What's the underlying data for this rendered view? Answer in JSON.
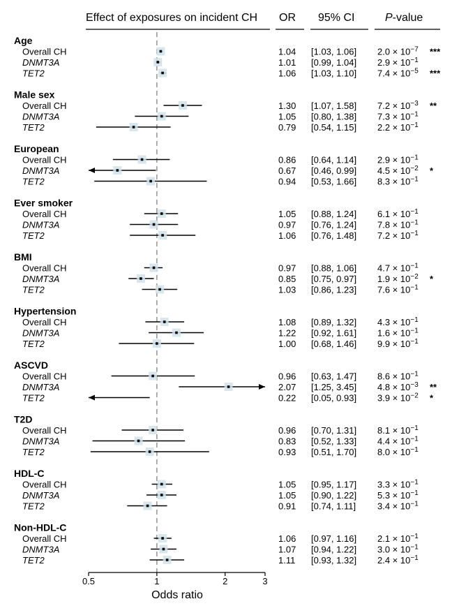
{
  "chart_data": {
    "type": "forest",
    "header": {
      "effect": "Effect of exposures on incident CH",
      "or": "OR",
      "ci": "95% CI",
      "p": "P-value"
    },
    "xlabel": "Odds ratio",
    "xscale": "log",
    "xlim": [
      0.5,
      3
    ],
    "xticks": [
      {
        "value": 0.5,
        "label": "0.5"
      },
      {
        "value": 1,
        "label": "1"
      },
      {
        "value": 2,
        "label": "2"
      },
      {
        "value": 3,
        "label": "3"
      }
    ],
    "reference_line": 1,
    "groups": [
      {
        "name": "Age",
        "rows": [
          {
            "label": "Overall CH",
            "italic": false,
            "or": 1.04,
            "lo": 1.03,
            "hi": 1.06,
            "or_text": "1.04",
            "ci_text": "[1.03, 1.06]",
            "p_mant": "2.0",
            "p_exp": "−7",
            "stars": "***"
          },
          {
            "label": "DNMT3A",
            "italic": true,
            "or": 1.01,
            "lo": 0.99,
            "hi": 1.04,
            "or_text": "1.01",
            "ci_text": "[0.99, 1.04]",
            "p_mant": "2.9",
            "p_exp": "−1",
            "stars": ""
          },
          {
            "label": "TET2",
            "italic": true,
            "or": 1.06,
            "lo": 1.03,
            "hi": 1.1,
            "or_text": "1.06",
            "ci_text": "[1.03, 1.10]",
            "p_mant": "7.4",
            "p_exp": "−5",
            "stars": "***"
          }
        ]
      },
      {
        "name": "Male sex",
        "rows": [
          {
            "label": "Overall CH",
            "italic": false,
            "or": 1.3,
            "lo": 1.07,
            "hi": 1.58,
            "or_text": "1.30",
            "ci_text": "[1.07, 1.58]",
            "p_mant": "7.2",
            "p_exp": "−3",
            "stars": "**"
          },
          {
            "label": "DNMT3A",
            "italic": true,
            "or": 1.05,
            "lo": 0.8,
            "hi": 1.38,
            "or_text": "1.05",
            "ci_text": "[0.80, 1.38]",
            "p_mant": "7.3",
            "p_exp": "−1",
            "stars": ""
          },
          {
            "label": "TET2",
            "italic": true,
            "or": 0.79,
            "lo": 0.54,
            "hi": 1.15,
            "or_text": "0.79",
            "ci_text": "[0.54, 1.15]",
            "p_mant": "2.2",
            "p_exp": "−1",
            "stars": ""
          }
        ]
      },
      {
        "name": "European",
        "rows": [
          {
            "label": "Overall CH",
            "italic": false,
            "or": 0.86,
            "lo": 0.64,
            "hi": 1.14,
            "or_text": "0.86",
            "ci_text": "[0.64, 1.14]",
            "p_mant": "2.9",
            "p_exp": "−1",
            "stars": ""
          },
          {
            "label": "DNMT3A",
            "italic": true,
            "or": 0.67,
            "lo": 0.46,
            "hi": 0.99,
            "or_text": "0.67",
            "ci_text": "[0.46, 0.99]",
            "p_mant": "4.5",
            "p_exp": "−2",
            "stars": "*"
          },
          {
            "label": "TET2",
            "italic": true,
            "or": 0.94,
            "lo": 0.53,
            "hi": 1.66,
            "or_text": "0.94",
            "ci_text": "[0.53, 1.66]",
            "p_mant": "8.3",
            "p_exp": "−1",
            "stars": ""
          }
        ]
      },
      {
        "name": "Ever smoker",
        "rows": [
          {
            "label": "Overall CH",
            "italic": false,
            "or": 1.05,
            "lo": 0.88,
            "hi": 1.24,
            "or_text": "1.05",
            "ci_text": "[0.88, 1.24]",
            "p_mant": "6.1",
            "p_exp": "−1",
            "stars": ""
          },
          {
            "label": "DNMT3A",
            "italic": true,
            "or": 0.97,
            "lo": 0.76,
            "hi": 1.24,
            "or_text": "0.97",
            "ci_text": "[0.76, 1.24]",
            "p_mant": "7.8",
            "p_exp": "−1",
            "stars": ""
          },
          {
            "label": "TET2",
            "italic": true,
            "or": 1.06,
            "lo": 0.76,
            "hi": 1.48,
            "or_text": "1.06",
            "ci_text": "[0.76, 1.48]",
            "p_mant": "7.2",
            "p_exp": "−1",
            "stars": ""
          }
        ]
      },
      {
        "name": "BMI",
        "rows": [
          {
            "label": "Overall CH",
            "italic": false,
            "or": 0.97,
            "lo": 0.88,
            "hi": 1.06,
            "or_text": "0.97",
            "ci_text": "[0.88, 1.06]",
            "p_mant": "4.7",
            "p_exp": "−1",
            "stars": ""
          },
          {
            "label": "DNMT3A",
            "italic": true,
            "or": 0.85,
            "lo": 0.75,
            "hi": 0.97,
            "or_text": "0.85",
            "ci_text": "[0.75, 0.97]",
            "p_mant": "1.9",
            "p_exp": "−2",
            "stars": "*"
          },
          {
            "label": "TET2",
            "italic": true,
            "or": 1.03,
            "lo": 0.86,
            "hi": 1.23,
            "or_text": "1.03",
            "ci_text": "[0.86, 1.23]",
            "p_mant": "7.6",
            "p_exp": "−1",
            "stars": ""
          }
        ]
      },
      {
        "name": "Hypertension",
        "rows": [
          {
            "label": "Overall CH",
            "italic": false,
            "or": 1.08,
            "lo": 0.89,
            "hi": 1.32,
            "or_text": "1.08",
            "ci_text": "[0.89, 1.32]",
            "p_mant": "4.3",
            "p_exp": "−1",
            "stars": ""
          },
          {
            "label": "DNMT3A",
            "italic": true,
            "or": 1.22,
            "lo": 0.92,
            "hi": 1.61,
            "or_text": "1.22",
            "ci_text": "[0.92, 1.61]",
            "p_mant": "1.6",
            "p_exp": "−1",
            "stars": ""
          },
          {
            "label": "TET2",
            "italic": true,
            "or": 1.0,
            "lo": 0.68,
            "hi": 1.46,
            "or_text": "1.00",
            "ci_text": "[0.68, 1.46]",
            "p_mant": "9.9",
            "p_exp": "−1",
            "stars": ""
          }
        ]
      },
      {
        "name": "ASCVD",
        "rows": [
          {
            "label": "Overall CH",
            "italic": false,
            "or": 0.96,
            "lo": 0.63,
            "hi": 1.47,
            "or_text": "0.96",
            "ci_text": "[0.63, 1.47]",
            "p_mant": "8.6",
            "p_exp": "−1",
            "stars": ""
          },
          {
            "label": "DNMT3A",
            "italic": true,
            "or": 2.07,
            "lo": 1.25,
            "hi": 3.45,
            "or_text": "2.07",
            "ci_text": "[1.25, 3.45]",
            "p_mant": "4.8",
            "p_exp": "−3",
            "stars": "**"
          },
          {
            "label": "TET2",
            "italic": true,
            "or": 0.22,
            "lo": 0.05,
            "hi": 0.93,
            "or_text": "0.22",
            "ci_text": "[0.05, 0.93]",
            "p_mant": "3.9",
            "p_exp": "−2",
            "stars": "*"
          }
        ]
      },
      {
        "name": "T2D",
        "rows": [
          {
            "label": "Overall CH",
            "italic": false,
            "or": 0.96,
            "lo": 0.7,
            "hi": 1.31,
            "or_text": "0.96",
            "ci_text": "[0.70, 1.31]",
            "p_mant": "8.1",
            "p_exp": "−1",
            "stars": ""
          },
          {
            "label": "DNMT3A",
            "italic": true,
            "or": 0.83,
            "lo": 0.52,
            "hi": 1.33,
            "or_text": "0.83",
            "ci_text": "[0.52, 1.33]",
            "p_mant": "4.4",
            "p_exp": "−1",
            "stars": ""
          },
          {
            "label": "TET2",
            "italic": true,
            "or": 0.93,
            "lo": 0.51,
            "hi": 1.7,
            "or_text": "0.93",
            "ci_text": "[0.51, 1.70]",
            "p_mant": "8.0",
            "p_exp": "−1",
            "stars": ""
          }
        ]
      },
      {
        "name": "HDL-C",
        "rows": [
          {
            "label": "Overall CH",
            "italic": false,
            "or": 1.05,
            "lo": 0.95,
            "hi": 1.17,
            "or_text": "1.05",
            "ci_text": "[0.95, 1.17]",
            "p_mant": "3.3",
            "p_exp": "−1",
            "stars": ""
          },
          {
            "label": "DNMT3A",
            "italic": true,
            "or": 1.05,
            "lo": 0.9,
            "hi": 1.22,
            "or_text": "1.05",
            "ci_text": "[0.90, 1.22]",
            "p_mant": "5.3",
            "p_exp": "−1",
            "stars": ""
          },
          {
            "label": "TET2",
            "italic": true,
            "or": 0.91,
            "lo": 0.74,
            "hi": 1.11,
            "or_text": "0.91",
            "ci_text": "[0.74, 1.11]",
            "p_mant": "3.4",
            "p_exp": "−1",
            "stars": ""
          }
        ]
      },
      {
        "name": "Non-HDL-C",
        "rows": [
          {
            "label": "Overall CH",
            "italic": false,
            "or": 1.06,
            "lo": 0.97,
            "hi": 1.16,
            "or_text": "1.06",
            "ci_text": "[0.97, 1.16]",
            "p_mant": "2.1",
            "p_exp": "−1",
            "stars": ""
          },
          {
            "label": "DNMT3A",
            "italic": true,
            "or": 1.07,
            "lo": 0.94,
            "hi": 1.22,
            "or_text": "1.07",
            "ci_text": "[0.94, 1.22]",
            "p_mant": "3.0",
            "p_exp": "−1",
            "stars": ""
          },
          {
            "label": "TET2",
            "italic": true,
            "or": 1.11,
            "lo": 0.93,
            "hi": 1.32,
            "or_text": "1.11",
            "ci_text": "[0.93, 1.32]",
            "p_mant": "2.4",
            "p_exp": "−1",
            "stars": ""
          }
        ]
      }
    ]
  }
}
